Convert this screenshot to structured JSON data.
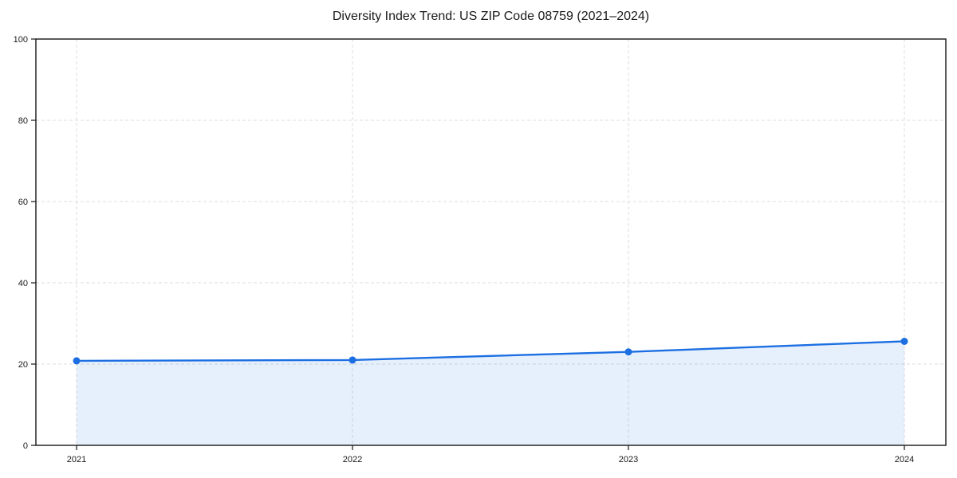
{
  "chart_data": {
    "type": "line",
    "title": "Diversity Index Trend: US ZIP Code 08759 (2021–2024)",
    "categories": [
      "2021",
      "2022",
      "2023",
      "2024"
    ],
    "series": [
      {
        "name": "Diversity Index",
        "values": [
          20.8,
          21.0,
          23.0,
          25.6
        ]
      }
    ],
    "xlabel": "",
    "ylabel": "",
    "ylim": [
      0,
      100
    ],
    "yticks": [
      0,
      20,
      40,
      60,
      80,
      100
    ],
    "grid": "dashed horizontal and vertical",
    "legend": "none",
    "area_fill": true,
    "marker": "circle",
    "colors": {
      "line": "#1c6fe2",
      "marker": "#1c6fe2",
      "area_fill": "rgba(28,111,226,0.11)",
      "gridline": "#dedede",
      "spine": "#161616",
      "tick_label": "#1a1a1a",
      "background": "#ffffff"
    }
  }
}
